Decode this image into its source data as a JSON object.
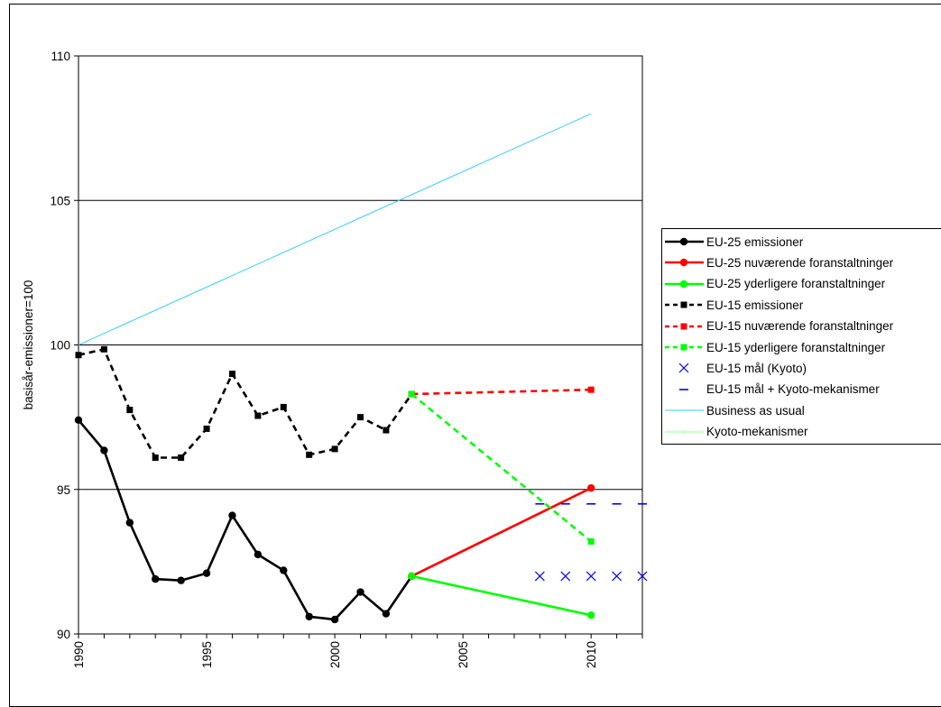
{
  "chart_data": {
    "type": "line",
    "ylabel": "basisår-emissioner=100",
    "xlabel": "",
    "xlim": [
      1990,
      2012
    ],
    "ylim": [
      90,
      110
    ],
    "yticks": [
      "90",
      "95",
      "100",
      "105",
      "110"
    ],
    "xticks": [
      "1990",
      "1995",
      "2000",
      "2005",
      "2010"
    ],
    "grid": "horizontal",
    "legend_position": "right",
    "series": [
      {
        "name": "EU-25 emissioner",
        "color": "#000000",
        "style": "solid",
        "marker": "circle",
        "x": [
          1990,
          1991,
          1992,
          1993,
          1994,
          1995,
          1996,
          1997,
          1998,
          1999,
          2000,
          2001,
          2002,
          2003
        ],
        "y": [
          97.4,
          96.35,
          93.85,
          91.9,
          91.85,
          92.1,
          94.1,
          92.75,
          92.2,
          90.6,
          90.5,
          91.45,
          90.7,
          92.0
        ]
      },
      {
        "name": "EU-25 nuværende foranstaltninger",
        "color": "#ff0000",
        "style": "solid",
        "marker": "circle",
        "x": [
          2003,
          2010
        ],
        "y": [
          92.0,
          95.05
        ]
      },
      {
        "name": "EU-25 yderligere foranstaltninger",
        "color": "#00ff00",
        "style": "solid",
        "marker": "circle",
        "x": [
          2003,
          2010
        ],
        "y": [
          92.0,
          90.65
        ]
      },
      {
        "name": "EU-15 emissioner",
        "color": "#000000",
        "style": "dashed",
        "marker": "square",
        "x": [
          1990,
          1991,
          1992,
          1993,
          1994,
          1995,
          1996,
          1997,
          1998,
          1999,
          2000,
          2001,
          2002,
          2003
        ],
        "y": [
          99.65,
          99.85,
          97.75,
          96.1,
          96.1,
          97.1,
          99.0,
          97.55,
          97.85,
          96.2,
          96.4,
          97.5,
          97.05,
          98.3
        ]
      },
      {
        "name": "EU-15 nuværende foranstaltninger",
        "color": "#ff0000",
        "style": "dashed",
        "marker": "square",
        "x": [
          2003,
          2010
        ],
        "y": [
          98.3,
          98.45
        ]
      },
      {
        "name": "EU-15 yderligere foranstaltninger",
        "color": "#00ff00",
        "style": "dashed",
        "marker": "square",
        "x": [
          2003,
          2010
        ],
        "y": [
          98.3,
          93.2
        ]
      },
      {
        "name": "EU-15 mål (Kyoto)",
        "color": "#0000ff",
        "style": "none",
        "marker": "x",
        "x": [
          2008,
          2009,
          2010,
          2011,
          2012
        ],
        "y": [
          92.0,
          92.0,
          92.0,
          92.0,
          92.0
        ]
      },
      {
        "name": "EU-15 mål + Kyoto-mekanismer",
        "color": "#0000ff",
        "style": "none",
        "marker": "dash",
        "x": [
          2008,
          2009,
          2010,
          2011,
          2012
        ],
        "y": [
          94.5,
          94.5,
          94.5,
          94.5,
          94.5
        ]
      },
      {
        "name": "Business as usual",
        "color": "#33ccff",
        "style": "solid",
        "marker": "none",
        "x": [
          1990,
          2010
        ],
        "y": [
          100.0,
          108.0
        ]
      },
      {
        "name": "Kyoto-mekanismer",
        "color": "#ccffcc",
        "style": "solid",
        "marker": "small-dot",
        "x": [],
        "y": []
      }
    ]
  }
}
